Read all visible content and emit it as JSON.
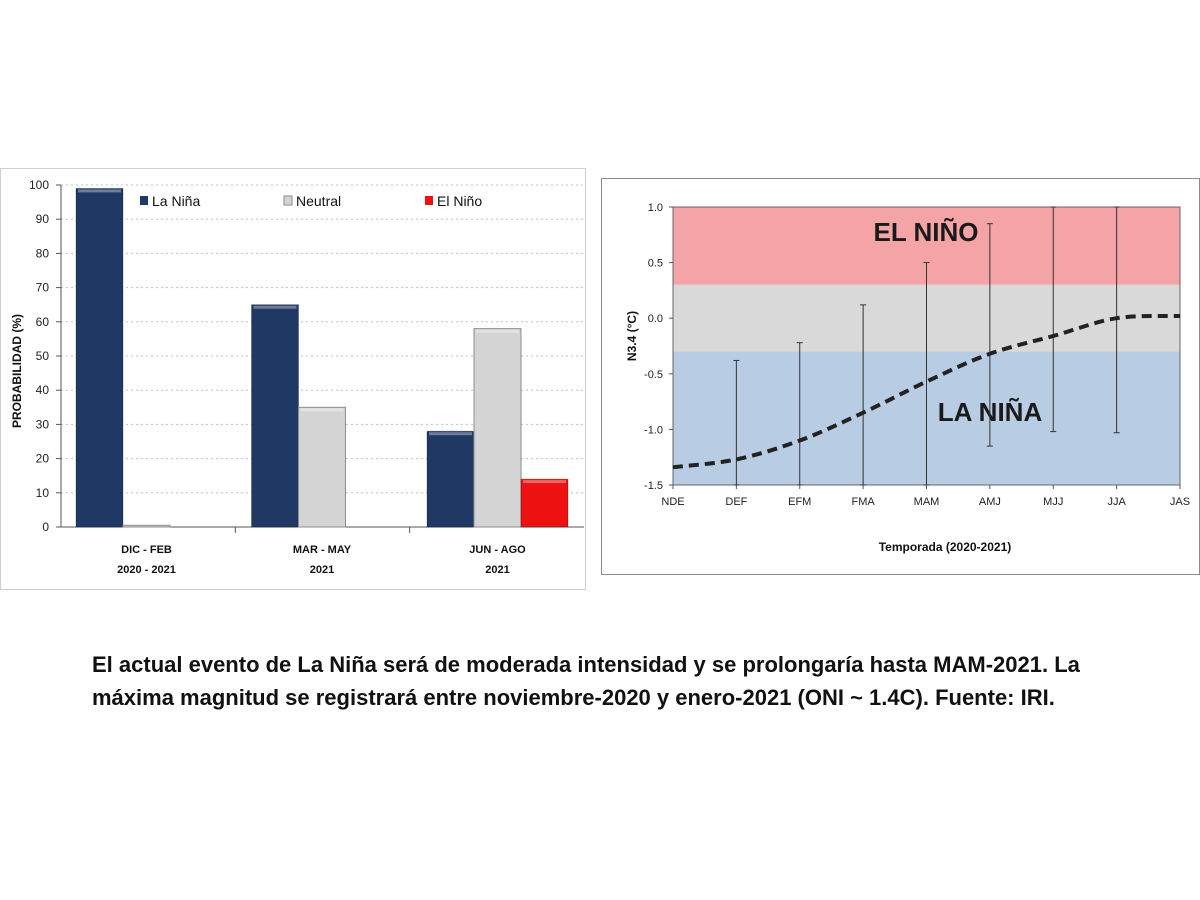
{
  "chart_data": [
    {
      "type": "bar",
      "ylabel": "PROBABILIDAD (%)",
      "ylim": [
        0,
        100
      ],
      "yticks": [
        0,
        10,
        20,
        30,
        40,
        50,
        60,
        70,
        80,
        90,
        100
      ],
      "grid": true,
      "legend_position": "top",
      "categories": [
        {
          "line1": "DIC - FEB",
          "line2": "2020 - 2021"
        },
        {
          "line1": "MAR - MAY",
          "line2": "2021"
        },
        {
          "line1": "JUN - AGO",
          "line2": "2021"
        }
      ],
      "series": [
        {
          "name": "La Niña",
          "color": "#1f3864",
          "values": [
            99,
            65,
            28
          ]
        },
        {
          "name": "Neutral",
          "color": "#d4d4d4",
          "values": [
            0.5,
            35,
            58
          ]
        },
        {
          "name": "El Niño",
          "color": "#ee1111",
          "values": [
            0,
            0,
            14
          ]
        }
      ]
    },
    {
      "type": "line",
      "ylabel": "N3.4 (°C)",
      "xlabel": "Temporada (2020-2021)",
      "ylim": [
        -1.5,
        1.0
      ],
      "yticks": [
        "-1.5",
        "-1.0",
        "-0.5",
        "0.0",
        "0.5",
        "1.0"
      ],
      "x": [
        "NDE",
        "DEF",
        "EFM",
        "FMA",
        "MAM",
        "AMJ",
        "MJJ",
        "JJA",
        "JAS"
      ],
      "series": [
        {
          "values": [
            -1.34,
            -1.27,
            -1.1,
            -0.85,
            -0.57,
            -0.32,
            -0.16,
            0.0,
            0.02
          ],
          "style": "dashed",
          "color": "#222222"
        }
      ],
      "error_bars": [
        {
          "x": "DEF",
          "low": -1.5,
          "high": -0.38
        },
        {
          "x": "EFM",
          "low": -1.5,
          "high": -0.22
        },
        {
          "x": "FMA",
          "low": -1.5,
          "high": 0.12
        },
        {
          "x": "MAM",
          "low": -1.5,
          "high": 0.5
        },
        {
          "x": "AMJ",
          "low": -1.15,
          "high": 0.85
        },
        {
          "x": "MJJ",
          "low": -1.02,
          "high": 1.0
        },
        {
          "x": "JJA",
          "low": -1.03,
          "high": 1.0
        }
      ],
      "regions": [
        {
          "label": "EL NIÑO",
          "from": 0.3,
          "to": 1.0,
          "color": "#f4a3a6"
        },
        {
          "label": "",
          "from": -0.3,
          "to": 0.3,
          "color": "#d9d9d9"
        },
        {
          "label": "LA NIÑA",
          "from": -1.5,
          "to": -0.3,
          "color": "#b8cce4"
        }
      ],
      "grid": false
    }
  ],
  "caption": "El actual evento de La Niña será de moderada intensidad y se prolongaría hasta MAM-2021. La máxima magnitud se registrará entre noviembre-2020 y enero-2021 (ONI ~ 1.4C). Fuente: IRI."
}
